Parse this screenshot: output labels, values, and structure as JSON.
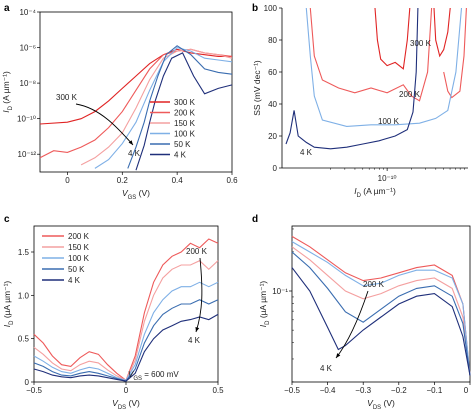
{
  "colors": {
    "300K": "#e02424",
    "200K": "#ee5a5a",
    "150K": "#f4a0a0",
    "100K": "#7fb0e6",
    "50K": "#3a6db0",
    "4K": "#1f2f7a"
  },
  "chart_data": [
    {
      "panel": "a",
      "type": "line",
      "xlabel_main": "V",
      "xlabel_sub": "GS",
      "xlabel_unit": " (V)",
      "ylabel_main": "I",
      "ylabel_sub": "D",
      "ylabel_unit": " (A µm⁻¹)",
      "y_log": true,
      "xlim": [
        -0.1,
        0.6
      ],
      "ylim_exp": [
        -13,
        -4
      ],
      "xticks": [
        0,
        0.2,
        0.4,
        0.6
      ],
      "xtick_labels": [
        "0",
        "0.2",
        "0.4",
        "0.6"
      ],
      "yticks_exp": [
        -12,
        -10,
        -8,
        -6,
        -4
      ],
      "ytick_labels": [
        "10⁻¹²",
        "10⁻¹⁰",
        "10⁻⁸",
        "10⁻⁶",
        "10⁻⁴"
      ],
      "legend_position": "right",
      "legend": [
        "300 K",
        "200 K",
        "150 K",
        "100 K",
        "50 K",
        "4 K"
      ],
      "annotations": {
        "from": "300 K",
        "to": "4 K"
      },
      "series": [
        {
          "name": "300 K",
          "color_key": "300K",
          "x": [
            -0.1,
            0.0,
            0.05,
            0.1,
            0.15,
            0.2,
            0.25,
            0.3,
            0.35,
            0.4,
            0.45,
            0.5,
            0.55,
            0.6
          ],
          "y": [
            -10.3,
            -10.2,
            -10.0,
            -9.6,
            -9.0,
            -8.3,
            -7.6,
            -6.9,
            -6.4,
            -6.1,
            -6.3,
            -6.4,
            -6.5,
            -6.5
          ]
        },
        {
          "name": "200 K",
          "color_key": "200K",
          "x": [
            -0.1,
            -0.05,
            0.0,
            0.05,
            0.1,
            0.15,
            0.2,
            0.25,
            0.3,
            0.35,
            0.4,
            0.45,
            0.5,
            0.55,
            0.6
          ],
          "y": [
            -12.2,
            -11.8,
            -11.9,
            -11.6,
            -11.2,
            -10.5,
            -9.6,
            -8.4,
            -7.2,
            -6.4,
            -6.2,
            -6.1,
            -6.3,
            -6.4,
            -6.5
          ]
        },
        {
          "name": "150 K",
          "color_key": "150K",
          "x": [
            0.05,
            0.1,
            0.15,
            0.2,
            0.25,
            0.3,
            0.35,
            0.4,
            0.45,
            0.5,
            0.55,
            0.6
          ],
          "y": [
            -12.6,
            -12.2,
            -11.6,
            -10.8,
            -9.4,
            -7.8,
            -6.6,
            -6.2,
            -6.1,
            -6.3,
            -6.4,
            -6.6
          ]
        },
        {
          "name": "100 K",
          "color_key": "100K",
          "x": [
            0.1,
            0.15,
            0.2,
            0.25,
            0.3,
            0.35,
            0.4,
            0.45,
            0.5,
            0.55,
            0.6
          ],
          "y": [
            -12.8,
            -12.3,
            -11.4,
            -10.2,
            -8.4,
            -6.8,
            -6.0,
            -6.2,
            -6.6,
            -6.7,
            -6.8
          ]
        },
        {
          "name": "50 K",
          "color_key": "50K",
          "x": [
            0.22,
            0.25,
            0.28,
            0.3,
            0.33,
            0.36,
            0.4,
            0.45,
            0.5,
            0.55,
            0.6
          ],
          "y": [
            -12.8,
            -11.6,
            -10.2,
            -9.0,
            -7.6,
            -6.4,
            -5.9,
            -6.4,
            -7.2,
            -7.4,
            -7.5
          ]
        },
        {
          "name": "4 K",
          "color_key": "4K",
          "x": [
            0.25,
            0.28,
            0.3,
            0.32,
            0.35,
            0.38,
            0.42,
            0.46,
            0.5,
            0.55,
            0.6
          ],
          "y": [
            -12.9,
            -11.5,
            -10.2,
            -9.0,
            -7.6,
            -6.6,
            -6.3,
            -7.6,
            -8.6,
            -8.3,
            -8.1
          ]
        }
      ]
    },
    {
      "panel": "b",
      "type": "line",
      "xlabel_main": "I",
      "xlabel_sub": "D",
      "xlabel_unit": " (A µm⁻¹)",
      "ylabel_main": "SS (mV dec",
      "ylabel_sup": "⁻¹",
      "ylabel_unit": ")",
      "x_log": true,
      "xlim_exp": [
        -11.3,
        -9.0
      ],
      "ylim": [
        0,
        100
      ],
      "xticks_exp": [
        -10
      ],
      "xtick_labels": [
        "10⁻¹⁰"
      ],
      "yticks": [
        0,
        20,
        40,
        60,
        80,
        100
      ],
      "ytick_labels": [
        "0",
        "20",
        "40",
        "60",
        "80",
        "100"
      ],
      "series_labels": [
        "300 K",
        "200 K",
        "100 K",
        "4 K"
      ],
      "series": [
        {
          "name": "300 K",
          "color_key": "300K",
          "x_exp": [
            -10.15,
            -10.12,
            -10.08,
            -10.0,
            -9.9,
            -9.8,
            -9.75,
            -9.72
          ],
          "y": [
            100,
            80,
            68,
            64,
            66,
            62,
            80,
            100
          ]
        },
        {
          "name": "300 K",
          "color_key": "300K",
          "x_exp": [
            -9.42,
            -9.4,
            -9.35,
            -9.3,
            -9.25,
            -9.22
          ],
          "y": [
            100,
            80,
            70,
            74,
            85,
            100
          ]
        },
        {
          "name": "200 K",
          "color_key": "200K",
          "x_exp": [
            -10.95,
            -10.9,
            -10.8,
            -10.6,
            -10.4,
            -10.2,
            -10.0,
            -9.8,
            -9.7,
            -9.6,
            -9.5,
            -9.45
          ],
          "y": [
            100,
            70,
            55,
            50,
            47,
            50,
            47,
            52,
            45,
            42,
            60,
            100
          ]
        },
        {
          "name": "200 K",
          "color_key": "200K",
          "x_exp": [
            -9.3,
            -9.25,
            -9.2,
            -9.1,
            -9.05,
            -9.02
          ],
          "y": [
            60,
            48,
            44,
            48,
            70,
            100
          ]
        },
        {
          "name": "100 K",
          "color_key": "100K",
          "x_exp": [
            -11.0,
            -10.95,
            -10.9,
            -10.8,
            -10.5,
            -10.2,
            -9.9,
            -9.6,
            -9.4,
            -9.25,
            -9.15,
            -9.08
          ],
          "y": [
            100,
            70,
            45,
            30,
            26,
            27,
            27,
            28,
            31,
            36,
            60,
            100
          ]
        },
        {
          "name": "4 K",
          "color_key": "4K",
          "x_exp": [
            -11.25,
            -11.2,
            -11.15,
            -11.1,
            -11.05,
            -11.0,
            -10.9,
            -10.7,
            -10.5,
            -10.3,
            -10.1,
            -9.9,
            -9.75,
            -9.68,
            -9.64,
            -9.62
          ],
          "y": [
            15,
            22,
            36,
            20,
            18,
            16,
            13,
            12,
            13,
            15,
            17,
            20,
            24,
            35,
            60,
            100
          ]
        }
      ]
    },
    {
      "panel": "c",
      "type": "line",
      "xlabel_main": "V",
      "xlabel_sub": "DS",
      "xlabel_unit": " (V)",
      "ylabel_main": "I",
      "ylabel_sub": "D",
      "ylabel_unit": " (µA µm⁻¹)",
      "xlim": [
        -0.5,
        0.5
      ],
      "ylim": [
        0,
        1.8
      ],
      "xticks": [
        -0.5,
        0,
        0.5
      ],
      "xtick_labels": [
        "−0.5",
        "0",
        "0.5"
      ],
      "yticks": [
        0,
        0.5,
        1.0,
        1.5
      ],
      "ytick_labels": [
        "0",
        "0.5",
        "1.0",
        "1.5"
      ],
      "legend_position": "top-left",
      "legend": [
        "200 K",
        "150 K",
        "100 K",
        "50 K",
        "4 K"
      ],
      "annotations": {
        "from": "200 K",
        "to": "4 K",
        "condition_main": "V",
        "condition_sub": "GS",
        "condition_value": " = 600 mV"
      },
      "series": [
        {
          "name": "200 K",
          "color_key": "200K",
          "x": [
            -0.5,
            -0.45,
            -0.4,
            -0.35,
            -0.3,
            -0.25,
            -0.2,
            -0.15,
            -0.1,
            -0.05,
            0.0,
            0.05,
            0.1,
            0.15,
            0.2,
            0.25,
            0.3,
            0.35,
            0.4,
            0.45,
            0.5
          ],
          "y": [
            0.55,
            0.45,
            0.3,
            0.2,
            0.18,
            0.28,
            0.35,
            0.32,
            0.2,
            0.1,
            0.02,
            0.3,
            0.8,
            1.15,
            1.35,
            1.45,
            1.5,
            1.6,
            1.55,
            1.65,
            1.6
          ]
        },
        {
          "name": "150 K",
          "color_key": "150K",
          "x": [
            -0.5,
            -0.45,
            -0.4,
            -0.35,
            -0.3,
            -0.25,
            -0.2,
            -0.15,
            -0.1,
            -0.05,
            0.0,
            0.05,
            0.1,
            0.15,
            0.2,
            0.25,
            0.3,
            0.35,
            0.4,
            0.45,
            0.5
          ],
          "y": [
            0.4,
            0.32,
            0.22,
            0.15,
            0.13,
            0.2,
            0.24,
            0.22,
            0.14,
            0.07,
            0.02,
            0.25,
            0.7,
            1.0,
            1.2,
            1.3,
            1.35,
            1.35,
            1.4,
            1.3,
            1.4
          ]
        },
        {
          "name": "100 K",
          "color_key": "100K",
          "x": [
            -0.5,
            -0.45,
            -0.4,
            -0.35,
            -0.3,
            -0.25,
            -0.2,
            -0.15,
            -0.1,
            -0.05,
            0.0,
            0.05,
            0.1,
            0.15,
            0.2,
            0.25,
            0.3,
            0.35,
            0.4,
            0.45,
            0.5
          ],
          "y": [
            0.3,
            0.24,
            0.17,
            0.12,
            0.1,
            0.14,
            0.17,
            0.15,
            0.1,
            0.05,
            0.02,
            0.2,
            0.55,
            0.8,
            0.95,
            1.05,
            1.1,
            1.1,
            1.15,
            1.1,
            1.15
          ]
        },
        {
          "name": "50 K",
          "color_key": "50K",
          "x": [
            -0.5,
            -0.45,
            -0.4,
            -0.35,
            -0.3,
            -0.25,
            -0.2,
            -0.15,
            -0.1,
            -0.05,
            0.0,
            0.05,
            0.1,
            0.15,
            0.2,
            0.25,
            0.3,
            0.35,
            0.4,
            0.45,
            0.5
          ],
          "y": [
            0.22,
            0.18,
            0.12,
            0.08,
            0.07,
            0.1,
            0.12,
            0.1,
            0.07,
            0.04,
            0.01,
            0.15,
            0.45,
            0.65,
            0.78,
            0.85,
            0.9,
            0.9,
            0.95,
            0.9,
            0.95
          ]
        },
        {
          "name": "4 K",
          "color_key": "4K",
          "x": [
            -0.5,
            -0.45,
            -0.4,
            -0.35,
            -0.3,
            -0.25,
            -0.2,
            -0.15,
            -0.1,
            -0.05,
            0.0,
            0.05,
            0.1,
            0.15,
            0.2,
            0.25,
            0.3,
            0.35,
            0.4,
            0.45,
            0.5
          ],
          "y": [
            0.15,
            0.12,
            0.08,
            0.06,
            0.05,
            0.07,
            0.08,
            0.07,
            0.05,
            0.03,
            0.01,
            0.1,
            0.35,
            0.5,
            0.6,
            0.65,
            0.7,
            0.72,
            0.75,
            0.72,
            0.78
          ]
        }
      ]
    },
    {
      "panel": "d",
      "type": "line",
      "xlabel_main": "V",
      "xlabel_sub": "DS",
      "xlabel_unit": " (V)",
      "ylabel_main": "I",
      "ylabel_sub": "D",
      "ylabel_unit": " (µA µm⁻¹)",
      "y_log": true,
      "xlim": [
        -0.5,
        0.0
      ],
      "ylim_exp": [
        -1.7,
        -0.5
      ],
      "xticks": [
        -0.5,
        -0.4,
        -0.3,
        -0.2,
        -0.1,
        0.0
      ],
      "xtick_labels": [
        "−0.5",
        "−0.4",
        "−0.3",
        "−0.2",
        "−0.1",
        "0"
      ],
      "yticks_exp": [
        -1
      ],
      "ytick_labels": [
        "10⁻¹"
      ],
      "annotations": {
        "from": "200 K",
        "to": "4 K"
      },
      "series": [
        {
          "name": "200 K",
          "color_key": "200K",
          "x": [
            -0.5,
            -0.45,
            -0.4,
            -0.35,
            -0.3,
            -0.25,
            -0.2,
            -0.15,
            -0.1,
            -0.05,
            -0.02,
            0.0
          ],
          "y_exp": [
            -0.58,
            -0.66,
            -0.76,
            -0.86,
            -0.92,
            -0.9,
            -0.86,
            -0.82,
            -0.8,
            -0.88,
            -1.1,
            -1.65
          ]
        },
        {
          "name": "150 K",
          "color_key": "150K",
          "x": [
            -0.5,
            -0.45,
            -0.4,
            -0.35,
            -0.3,
            -0.25,
            -0.2,
            -0.15,
            -0.1,
            -0.05,
            -0.02,
            0.0
          ],
          "y_exp": [
            -0.66,
            -0.76,
            -0.88,
            -1.0,
            -1.06,
            -1.02,
            -0.96,
            -0.92,
            -0.9,
            -0.98,
            -1.2,
            -1.65
          ]
        },
        {
          "name": "100 K",
          "color_key": "100K",
          "x": [
            -0.5,
            -0.45,
            -0.4,
            -0.35,
            -0.3,
            -0.25,
            -0.2,
            -0.15,
            -0.1,
            -0.05,
            -0.02,
            0.0
          ],
          "y_exp": [
            -0.62,
            -0.7,
            -0.78,
            -0.88,
            -0.96,
            -0.94,
            -0.88,
            -0.84,
            -0.84,
            -0.9,
            -1.1,
            -1.65
          ]
        },
        {
          "name": "50 K",
          "color_key": "50K",
          "x": [
            -0.5,
            -0.45,
            -0.4,
            -0.35,
            -0.3,
            -0.25,
            -0.2,
            -0.15,
            -0.1,
            -0.05,
            -0.02,
            0.0
          ],
          "y_exp": [
            -0.7,
            -0.82,
            -0.98,
            -1.16,
            -1.24,
            -1.14,
            -1.04,
            -0.98,
            -0.96,
            -1.04,
            -1.25,
            -1.65
          ]
        },
        {
          "name": "4 K",
          "color_key": "4K",
          "x": [
            -0.5,
            -0.45,
            -0.4,
            -0.37,
            -0.35,
            -0.3,
            -0.25,
            -0.2,
            -0.15,
            -0.1,
            -0.05,
            -0.02,
            0.0
          ],
          "y_exp": [
            -0.82,
            -1.0,
            -1.28,
            -1.45,
            -1.42,
            -1.3,
            -1.2,
            -1.1,
            -1.04,
            -1.02,
            -1.12,
            -1.35,
            -1.65
          ]
        }
      ]
    }
  ]
}
